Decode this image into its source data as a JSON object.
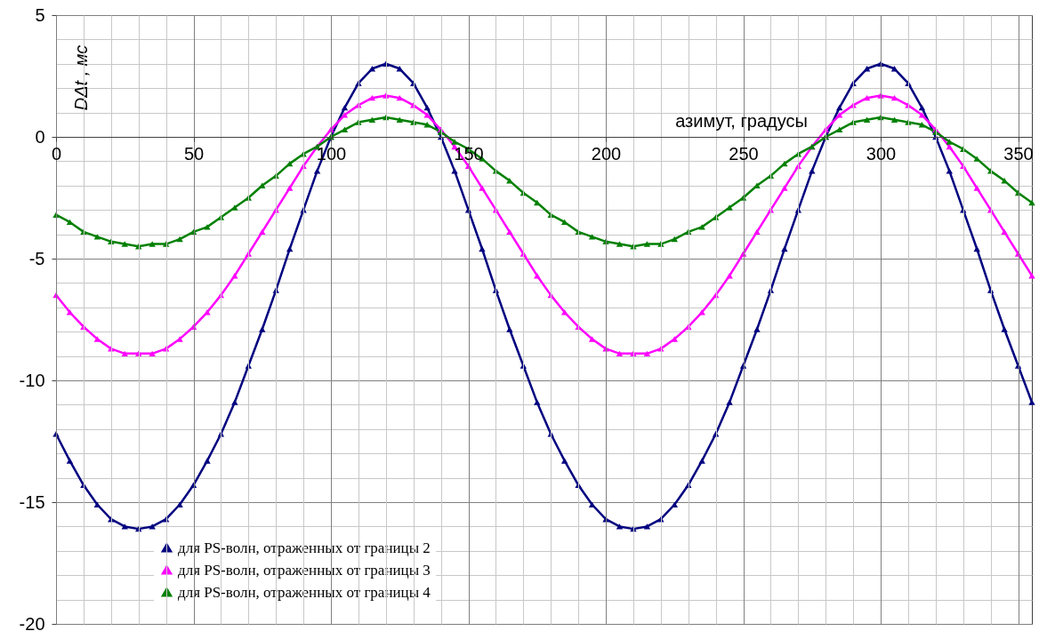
{
  "chart_data": {
    "type": "line",
    "xlabel": "азимут, градусы",
    "ylabel": "DΔt , мс",
    "x": [
      0,
      5,
      10,
      15,
      20,
      25,
      30,
      35,
      40,
      45,
      50,
      55,
      60,
      65,
      70,
      75,
      80,
      85,
      90,
      95,
      100,
      105,
      110,
      115,
      120,
      125,
      130,
      135,
      140,
      145,
      150,
      155,
      160,
      165,
      170,
      175,
      180,
      185,
      190,
      195,
      200,
      205,
      210,
      215,
      220,
      225,
      230,
      235,
      240,
      245,
      250,
      255,
      260,
      265,
      270,
      275,
      280,
      285,
      290,
      295,
      300,
      305,
      310,
      315,
      320,
      325,
      330,
      335,
      340,
      345,
      350,
      355
    ],
    "series": [
      {
        "name": "для PS-волн, отраженных от границы 2",
        "color": "#000080",
        "values": [
          -12.2,
          -13.3,
          -14.3,
          -15.1,
          -15.7,
          -16.0,
          -16.1,
          -16.0,
          -15.7,
          -15.1,
          -14.3,
          -13.3,
          -12.2,
          -10.9,
          -9.4,
          -7.9,
          -6.3,
          -4.6,
          -3.0,
          -1.4,
          0.0,
          1.2,
          2.2,
          2.8,
          3.0,
          2.8,
          2.2,
          1.2,
          0.0,
          -1.4,
          -3.0,
          -4.6,
          -6.3,
          -7.9,
          -9.4,
          -10.9,
          -12.2,
          -13.3,
          -14.3,
          -15.1,
          -15.7,
          -16.0,
          -16.1,
          -16.0,
          -15.7,
          -15.1,
          -14.3,
          -13.3,
          -12.2,
          -10.9,
          -9.4,
          -7.9,
          -6.3,
          -4.6,
          -3.0,
          -1.4,
          0.0,
          1.2,
          2.2,
          2.8,
          3.0,
          2.8,
          2.2,
          1.2,
          0.0,
          -1.4,
          -3.0,
          -4.6,
          -6.3,
          -7.9,
          -9.4,
          -10.9
        ]
      },
      {
        "name": "для PS-волн, отраженных от границы 3",
        "color": "#ff00ff",
        "values": [
          -6.5,
          -7.2,
          -7.8,
          -8.3,
          -8.7,
          -8.9,
          -8.9,
          -8.9,
          -8.7,
          -8.3,
          -7.8,
          -7.2,
          -6.5,
          -5.7,
          -4.8,
          -3.9,
          -3.0,
          -2.1,
          -1.2,
          -0.4,
          0.3,
          0.9,
          1.3,
          1.6,
          1.7,
          1.6,
          1.3,
          0.9,
          0.3,
          -0.4,
          -1.2,
          -2.1,
          -3.0,
          -3.9,
          -4.8,
          -5.7,
          -6.5,
          -7.2,
          -7.8,
          -8.3,
          -8.7,
          -8.9,
          -8.9,
          -8.9,
          -8.7,
          -8.3,
          -7.8,
          -7.2,
          -6.5,
          -5.7,
          -4.8,
          -3.9,
          -3.0,
          -2.1,
          -1.2,
          -0.4,
          0.3,
          0.9,
          1.3,
          1.6,
          1.7,
          1.6,
          1.3,
          0.9,
          0.3,
          -0.4,
          -1.2,
          -2.1,
          -3.0,
          -3.9,
          -4.8,
          -5.7
        ]
      },
      {
        "name": "для PS-волн, отраженных от границы 4",
        "color": "#008000",
        "values": [
          -3.2,
          -3.5,
          -3.9,
          -4.1,
          -4.3,
          -4.4,
          -4.5,
          -4.4,
          -4.4,
          -4.2,
          -3.9,
          -3.7,
          -3.3,
          -2.9,
          -2.5,
          -2.0,
          -1.6,
          -1.1,
          -0.7,
          -0.4,
          0.0,
          0.3,
          0.6,
          0.7,
          0.8,
          0.7,
          0.6,
          0.5,
          0.2,
          -0.2,
          -0.5,
          -0.9,
          -1.4,
          -1.8,
          -2.3,
          -2.7,
          -3.2,
          -3.5,
          -3.9,
          -4.1,
          -4.3,
          -4.4,
          -4.5,
          -4.4,
          -4.4,
          -4.2,
          -3.9,
          -3.7,
          -3.3,
          -2.9,
          -2.5,
          -2.0,
          -1.6,
          -1.1,
          -0.7,
          -0.4,
          0.0,
          0.3,
          0.6,
          0.7,
          0.8,
          0.7,
          0.6,
          0.5,
          0.2,
          -0.2,
          -0.5,
          -0.9,
          -1.4,
          -1.8,
          -2.3,
          -2.7
        ]
      }
    ],
    "xlim": [
      0,
      355
    ],
    "xticks": [
      0,
      {
        "value": 10,
        "label": null
      },
      {
        "value": 20,
        "label": null
      },
      {
        "value": 30,
        "label": null
      },
      {
        "value": 40,
        "label": null
      },
      50,
      {
        "value": 60,
        "label": null
      },
      {
        "value": 70,
        "label": null
      },
      {
        "value": 80,
        "label": null
      },
      {
        "value": 90,
        "label": null
      },
      100,
      {
        "value": 110,
        "label": null
      },
      {
        "value": 120,
        "label": null
      },
      {
        "value": 130,
        "label": null
      },
      {
        "value": 140,
        "label": null
      },
      150,
      {
        "value": 160,
        "label": null
      },
      {
        "value": 170,
        "label": null
      },
      {
        "value": 180,
        "label": null
      },
      {
        "value": 190,
        "label": null
      },
      200,
      {
        "value": 210,
        "label": null
      },
      {
        "value": 220,
        "label": null
      },
      {
        "value": 230,
        "label": null
      },
      {
        "value": 240,
        "label": null
      },
      250,
      {
        "value": 260,
        "label": null
      },
      {
        "value": 270,
        "label": null
      },
      {
        "value": 280,
        "label": null
      },
      {
        "value": 290,
        "label": null
      },
      300,
      {
        "value": 310,
        "label": null
      },
      {
        "value": 320,
        "label": null
      },
      {
        "value": 330,
        "label": null
      },
      {
        "value": 340,
        "label": null
      },
      350
    ],
    "ylim": [
      -20,
      5
    ],
    "yticks": [
      5,
      {
        "value": 4,
        "label": null
      },
      {
        "value": 3,
        "label": null
      },
      {
        "value": 2,
        "label": null
      },
      {
        "value": 1,
        "label": null
      },
      0,
      {
        "value": -1,
        "label": null
      },
      {
        "value": -2,
        "label": null
      },
      {
        "value": -3,
        "label": null
      },
      {
        "value": -4,
        "label": null
      },
      -5,
      {
        "value": -6,
        "label": null
      },
      {
        "value": -7,
        "label": null
      },
      {
        "value": -8,
        "label": null
      },
      {
        "value": -9,
        "label": null
      },
      -10,
      {
        "value": -11,
        "label": null
      },
      {
        "value": -12,
        "label": null
      },
      {
        "value": -13,
        "label": null
      },
      {
        "value": -14,
        "label": null
      },
      -15,
      {
        "value": -16,
        "label": null
      },
      {
        "value": -17,
        "label": null
      },
      {
        "value": -18,
        "label": null
      },
      {
        "value": -19,
        "label": null
      },
      -20
    ],
    "grid": true,
    "legend": "bottom",
    "marker": "triangle",
    "line_style": "solid"
  }
}
